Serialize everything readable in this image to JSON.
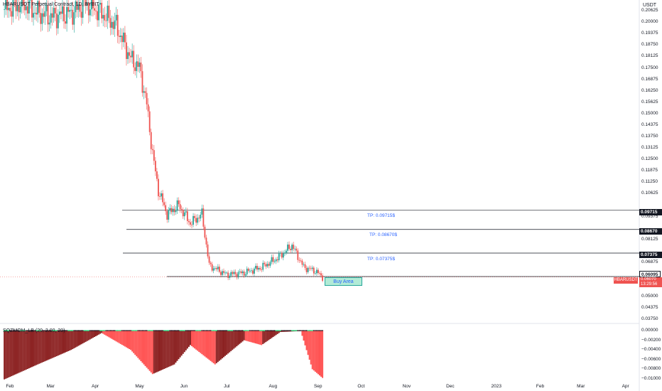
{
  "header": {
    "title": "HBARUSDT Perpetual Contract, 1D, BYBIT",
    "currency": "USDT"
  },
  "indicator": {
    "label": "SQZMOM_LB (20, 2.00, 20)"
  },
  "price_axis": [
    "0.20625",
    "0.20000",
    "0.19375",
    "0.18750",
    "0.18125",
    "0.17500",
    "0.16875",
    "0.16250",
    "0.15625",
    "0.15000",
    "0.14375",
    "0.13750",
    "0.13125",
    "0.12500",
    "0.11875",
    "0.11250",
    "0.10625",
    "0.09375",
    "0.08125",
    "0.06875",
    "0.05625",
    "0.05000",
    "0.04375",
    "0.03750"
  ],
  "ind_axis": [
    "0.00000",
    "−0.00200",
    "−0.00400",
    "−0.00600",
    "−0.00800",
    "−0.01000"
  ],
  "time_axis": [
    "Feb",
    "Mar",
    "Apr",
    "May",
    "Jun",
    "Jul",
    "Aug",
    "Sep",
    "Oct",
    "Nov",
    "Dec",
    "2023",
    "Feb",
    "Mar",
    "Apr"
  ],
  "levels": [
    {
      "tp": "TP: 0.09715$",
      "label": "0.09715"
    },
    {
      "tp": "TP: 0.08670$",
      "label": "0.08670"
    },
    {
      "tp": "TP: 0.07375$",
      "label": "0.07375"
    },
    {
      "label": "0.06095"
    }
  ],
  "buy_area": "Buy Area",
  "symbol_tag": "HBARUSDT",
  "current": {
    "price": "0.06070",
    "countdown": "13:29:56"
  },
  "colors": {
    "up": "#26a69a",
    "down": "#ef5350",
    "sq_dark": "#8b2020",
    "sq_light": "#ff5252",
    "ok": "#00e676",
    "level": "#131722"
  },
  "chart_data": {
    "type": "candlestick",
    "title": "HBARUSDT Perpetual Contract, 1D, BYBIT",
    "x_range": [
      "2022-01-25",
      "2023-04-10"
    ],
    "y_range": [
      0.0349,
      0.2094
    ],
    "current_price": 0.0607,
    "series": [
      {
        "name": "HBARUSDT",
        "values": [
          {
            "t": "2022-01-28",
            "c": 0.207
          },
          {
            "t": "2022-02-10",
            "c": 0.21
          },
          {
            "t": "2022-02-20",
            "c": 0.205
          },
          {
            "t": "2022-03-01",
            "c": 0.203
          },
          {
            "t": "2022-03-15",
            "c": 0.205
          },
          {
            "t": "2022-03-25",
            "c": 0.21
          },
          {
            "t": "2022-04-05",
            "c": 0.205
          },
          {
            "t": "2022-04-15",
            "c": 0.198
          },
          {
            "t": "2022-04-25",
            "c": 0.18
          },
          {
            "t": "2022-05-01",
            "c": 0.175
          },
          {
            "t": "2022-05-06",
            "c": 0.155
          },
          {
            "t": "2022-05-10",
            "c": 0.128
          },
          {
            "t": "2022-05-14",
            "c": 0.108
          },
          {
            "t": "2022-05-20",
            "c": 0.095
          },
          {
            "t": "2022-05-28",
            "c": 0.1
          },
          {
            "t": "2022-06-05",
            "c": 0.09
          },
          {
            "t": "2022-06-13",
            "c": 0.095
          },
          {
            "t": "2022-06-18",
            "c": 0.067
          },
          {
            "t": "2022-06-30",
            "c": 0.062
          },
          {
            "t": "2022-07-12",
            "c": 0.063
          },
          {
            "t": "2022-07-24",
            "c": 0.066
          },
          {
            "t": "2022-08-04",
            "c": 0.071
          },
          {
            "t": "2022-08-14",
            "c": 0.078
          },
          {
            "t": "2022-08-22",
            "c": 0.066
          },
          {
            "t": "2022-08-30",
            "c": 0.064
          },
          {
            "t": "2022-09-04",
            "c": 0.0607
          }
        ]
      }
    ],
    "levels": [
      0.09715,
      0.0867,
      0.07375,
      0.06095
    ],
    "buy_area": {
      "from": "2022-09-02",
      "to": "2022-09-28",
      "low": 0.0588,
      "high": 0.0625
    },
    "indicator": {
      "name": "SQZMOM_LB",
      "params": [
        20,
        2.0,
        20
      ],
      "y_range": [
        -0.0103,
        0.0005
      ],
      "values": [
        {
          "t": "2022-01-28",
          "v": -0.0101
        },
        {
          "t": "2022-02-20",
          "v": -0.007
        },
        {
          "t": "2022-03-15",
          "v": -0.004
        },
        {
          "t": "2022-04-05",
          "v": -0.0005
        },
        {
          "t": "2022-04-25",
          "v": -0.004
        },
        {
          "t": "2022-05-10",
          "v": -0.009
        },
        {
          "t": "2022-05-25",
          "v": -0.007
        },
        {
          "t": "2022-06-05",
          "v": -0.003
        },
        {
          "t": "2022-06-22",
          "v": -0.007
        },
        {
          "t": "2022-07-12",
          "v": -0.002
        },
        {
          "t": "2022-07-24",
          "v": -0.003
        },
        {
          "t": "2022-08-06",
          "v": -0.0003
        },
        {
          "t": "2022-08-20",
          "v": -0.0001
        },
        {
          "t": "2022-08-28",
          "v": -0.008
        },
        {
          "t": "2022-09-04",
          "v": -0.0098
        }
      ]
    }
  }
}
